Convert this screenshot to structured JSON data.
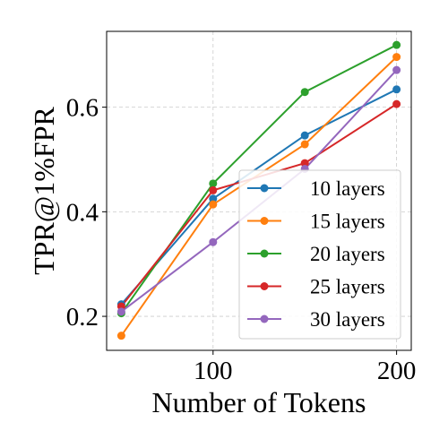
{
  "chart_data": {
    "type": "line",
    "title": "",
    "xlabel": "Number of Tokens",
    "ylabel": "TPR@1%FPR",
    "x": [
      50,
      100,
      150,
      200
    ],
    "xlim": [
      42,
      208
    ],
    "ylim": [
      0.135,
      0.745
    ],
    "xticks": [
      100,
      200
    ],
    "yticks": [
      0.2,
      0.4,
      0.6
    ],
    "ytick_labels": [
      "0.2",
      "0.4",
      "0.6"
    ],
    "grid": true,
    "legend_position": "lower-right",
    "series": [
      {
        "name": "10 layers",
        "color": "#1f77b4",
        "values": [
          0.223,
          0.425,
          0.546,
          0.634
        ]
      },
      {
        "name": "15 layers",
        "color": "#ff7f0e",
        "values": [
          0.163,
          0.414,
          0.529,
          0.696
        ]
      },
      {
        "name": "20 layers",
        "color": "#2ca02c",
        "values": [
          0.206,
          0.454,
          0.629,
          0.719
        ]
      },
      {
        "name": "25 layers",
        "color": "#d62728",
        "values": [
          0.219,
          0.441,
          0.493,
          0.606
        ]
      },
      {
        "name": "30 layers",
        "color": "#9467bd",
        "values": [
          0.209,
          0.342,
          0.482,
          0.671
        ]
      }
    ]
  }
}
